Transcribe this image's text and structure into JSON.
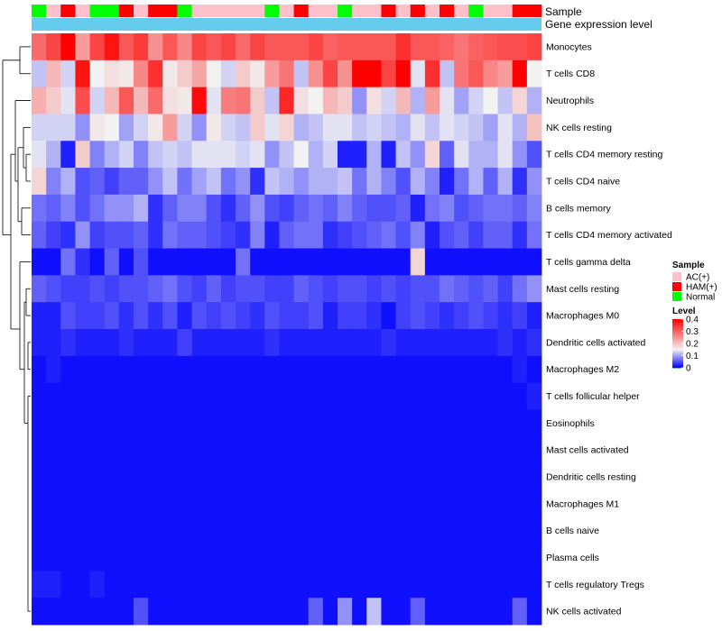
{
  "chart_data": {
    "type": "heatmap",
    "title": "",
    "annotation_labels": {
      "sample": "Sample",
      "expression": "Gene expression level"
    },
    "sample_groups": [
      "N",
      "A",
      "H",
      "A",
      "N",
      "N",
      "H",
      "A",
      "H",
      "H",
      "N",
      "A",
      "A",
      "A",
      "A",
      "A",
      "N",
      "A",
      "H",
      "A",
      "A",
      "N",
      "A",
      "A",
      "H",
      "A",
      "H",
      "A",
      "H",
      "A",
      "N",
      "A",
      "A",
      "H",
      "H"
    ],
    "rows": [
      "Monocytes",
      "T cells CD8",
      "Neutrophils",
      "NK cells resting",
      "T cells CD4 memory resting",
      "T cells CD4 naive",
      "B cells memory",
      "T cells CD4 memory activated",
      "T cells gamma delta",
      "Mast cells resting",
      "Macrophages M0",
      "Dendritic cells activated",
      "Macrophages M2",
      "T cells follicular helper",
      "Eosinophils",
      "Mast cells activated",
      "Dendritic cells resting",
      "Macrophages M1",
      "B cells naive",
      "Plasma cells",
      "T cells regulatory  Tregs",
      "NK cells activated"
    ],
    "values": [
      [
        0.29,
        0.33,
        0.4,
        0.24,
        0.33,
        0.38,
        0.31,
        0.34,
        0.25,
        0.31,
        0.26,
        0.33,
        0.31,
        0.33,
        0.29,
        0.33,
        0.31,
        0.31,
        0.31,
        0.33,
        0.3,
        0.31,
        0.31,
        0.31,
        0.31,
        0.35,
        0.31,
        0.31,
        0.3,
        0.28,
        0.3,
        0.31,
        0.32,
        0.32,
        0.33
      ],
      [
        0.12,
        0.21,
        0.13,
        0.38,
        0.15,
        0.17,
        0.16,
        0.26,
        0.35,
        0.16,
        0.19,
        0.23,
        0.15,
        0.13,
        0.19,
        0.16,
        0.24,
        0.28,
        0.12,
        0.25,
        0.33,
        0.25,
        0.4,
        0.4,
        0.33,
        0.4,
        0.14,
        0.35,
        0.12,
        0.28,
        0.31,
        0.26,
        0.24,
        0.4,
        0.15
      ],
      [
        0.22,
        0.19,
        0.14,
        0.32,
        0.13,
        0.21,
        0.31,
        0.21,
        0.29,
        0.17,
        0.16,
        0.39,
        0.14,
        0.27,
        0.28,
        0.19,
        0.12,
        0.36,
        0.17,
        0.15,
        0.21,
        0.19,
        0.09,
        0.17,
        0.13,
        0.21,
        0.11,
        0.24,
        0.14,
        0.1,
        0.13,
        0.15,
        0.12,
        0.18,
        0.11
      ],
      [
        0.13,
        0.13,
        0.13,
        0.09,
        0.16,
        0.15,
        0.1,
        0.13,
        0.16,
        0.24,
        0.13,
        0.09,
        0.16,
        0.13,
        0.12,
        0.19,
        0.14,
        0.18,
        0.11,
        0.12,
        0.14,
        0.14,
        0.12,
        0.13,
        0.12,
        0.11,
        0.14,
        0.12,
        0.14,
        0.13,
        0.12,
        0.1,
        0.14,
        0.11,
        0.2
      ],
      [
        0.14,
        0.11,
        0.02,
        0.19,
        0.08,
        0.11,
        0.13,
        0.08,
        0.12,
        0.13,
        0.12,
        0.14,
        0.14,
        0.14,
        0.13,
        0.14,
        0.09,
        0.12,
        0.15,
        0.11,
        0.13,
        0.02,
        0.02,
        0.11,
        0.02,
        0.12,
        0.09,
        0.18,
        0.06,
        0.14,
        0.11,
        0.11,
        0.14,
        0.09,
        0.05
      ],
      [
        0.18,
        0.08,
        0.11,
        0.05,
        0.06,
        0.04,
        0.06,
        0.06,
        0.09,
        0.12,
        0.07,
        0.1,
        0.12,
        0.07,
        0.09,
        0.03,
        0.12,
        0.11,
        0.09,
        0.11,
        0.11,
        0.12,
        0.07,
        0.11,
        0.08,
        0.05,
        0.11,
        0.08,
        0.02,
        0.07,
        0.11,
        0.06,
        0.11,
        0.03,
        0.09
      ],
      [
        0.07,
        0.06,
        0.08,
        0.05,
        0.07,
        0.09,
        0.09,
        0.11,
        0.03,
        0.06,
        0.08,
        0.08,
        0.05,
        0.03,
        0.06,
        0.09,
        0.05,
        0.04,
        0.06,
        0.07,
        0.06,
        0.08,
        0.06,
        0.05,
        0.05,
        0.06,
        0.02,
        0.07,
        0.08,
        0.05,
        0.06,
        0.07,
        0.07,
        0.06,
        0.08
      ],
      [
        0.06,
        0.04,
        0.03,
        0.09,
        0.04,
        0.05,
        0.05,
        0.06,
        0.03,
        0.07,
        0.06,
        0.06,
        0.05,
        0.04,
        0.03,
        0.08,
        0.02,
        0.06,
        0.07,
        0.07,
        0.03,
        0.04,
        0.05,
        0.06,
        0.07,
        0.05,
        0.08,
        0.02,
        0.05,
        0.06,
        0.04,
        0.06,
        0.06,
        0.03,
        0.07
      ],
      [
        0.01,
        0.01,
        0.07,
        0.03,
        0.01,
        0.06,
        0.01,
        0.05,
        0.01,
        0.01,
        0.01,
        0.01,
        0.01,
        0.01,
        0.07,
        0.01,
        0.01,
        0.01,
        0.01,
        0.01,
        0.01,
        0.01,
        0.01,
        0.01,
        0.01,
        0.01,
        0.18,
        0.01,
        0.01,
        0.01,
        0.01,
        0.01,
        0.01,
        0.01,
        0.01
      ],
      [
        0.06,
        0.05,
        0.04,
        0.04,
        0.05,
        0.04,
        0.05,
        0.05,
        0.06,
        0.07,
        0.05,
        0.04,
        0.06,
        0.04,
        0.05,
        0.05,
        0.04,
        0.04,
        0.06,
        0.05,
        0.04,
        0.05,
        0.05,
        0.04,
        0.05,
        0.04,
        0.05,
        0.05,
        0.07,
        0.06,
        0.05,
        0.06,
        0.04,
        0.07,
        0.09
      ],
      [
        0.02,
        0.02,
        0.05,
        0.04,
        0.04,
        0.05,
        0.03,
        0.05,
        0.03,
        0.05,
        0.02,
        0.05,
        0.04,
        0.05,
        0.04,
        0.03,
        0.05,
        0.04,
        0.04,
        0.05,
        0.02,
        0.04,
        0.04,
        0.03,
        0.01,
        0.04,
        0.05,
        0.04,
        0.03,
        0.04,
        0.05,
        0.04,
        0.03,
        0.04,
        0.02
      ],
      [
        0.02,
        0.02,
        0.03,
        0.02,
        0.02,
        0.02,
        0.03,
        0.02,
        0.02,
        0.02,
        0.04,
        0.02,
        0.02,
        0.02,
        0.02,
        0.02,
        0.03,
        0.02,
        0.02,
        0.02,
        0.02,
        0.02,
        0.02,
        0.02,
        0.03,
        0.02,
        0.02,
        0.02,
        0.02,
        0.02,
        0.02,
        0.02,
        0.03,
        0.02,
        0.03
      ],
      [
        0.01,
        0.02,
        0.01,
        0.01,
        0.01,
        0.01,
        0.01,
        0.01,
        0.01,
        0.01,
        0.01,
        0.01,
        0.01,
        0.01,
        0.01,
        0.01,
        0.01,
        0.01,
        0.01,
        0.01,
        0.01,
        0.01,
        0.01,
        0.01,
        0.01,
        0.01,
        0.01,
        0.01,
        0.01,
        0.01,
        0.01,
        0.01,
        0.01,
        0.02,
        0.01
      ],
      [
        0.01,
        0.01,
        0.01,
        0.01,
        0.01,
        0.01,
        0.01,
        0.01,
        0.01,
        0.01,
        0.01,
        0.01,
        0.01,
        0.01,
        0.01,
        0.01,
        0.01,
        0.01,
        0.01,
        0.01,
        0.01,
        0.01,
        0.01,
        0.01,
        0.01,
        0.01,
        0.01,
        0.01,
        0.01,
        0.01,
        0.01,
        0.01,
        0.01,
        0.01,
        0.02
      ],
      [
        0.01,
        0.01,
        0.01,
        0.01,
        0.01,
        0.01,
        0.01,
        0.01,
        0.01,
        0.01,
        0.01,
        0.01,
        0.01,
        0.01,
        0.01,
        0.01,
        0.01,
        0.01,
        0.01,
        0.01,
        0.01,
        0.01,
        0.01,
        0.01,
        0.01,
        0.01,
        0.01,
        0.01,
        0.01,
        0.01,
        0.01,
        0.01,
        0.01,
        0.01,
        0.01
      ],
      [
        0.01,
        0.01,
        0.01,
        0.01,
        0.01,
        0.01,
        0.01,
        0.01,
        0.01,
        0.01,
        0.01,
        0.01,
        0.01,
        0.01,
        0.01,
        0.01,
        0.01,
        0.01,
        0.01,
        0.01,
        0.01,
        0.01,
        0.01,
        0.01,
        0.01,
        0.01,
        0.01,
        0.01,
        0.01,
        0.01,
        0.01,
        0.01,
        0.01,
        0.01,
        0.01
      ],
      [
        0.01,
        0.01,
        0.01,
        0.01,
        0.01,
        0.01,
        0.01,
        0.01,
        0.01,
        0.01,
        0.01,
        0.01,
        0.01,
        0.01,
        0.01,
        0.01,
        0.01,
        0.01,
        0.01,
        0.01,
        0.01,
        0.01,
        0.01,
        0.01,
        0.01,
        0.01,
        0.01,
        0.01,
        0.01,
        0.01,
        0.01,
        0.01,
        0.01,
        0.01,
        0.01
      ],
      [
        0.01,
        0.01,
        0.01,
        0.01,
        0.01,
        0.01,
        0.01,
        0.01,
        0.01,
        0.01,
        0.01,
        0.01,
        0.01,
        0.01,
        0.01,
        0.01,
        0.01,
        0.01,
        0.01,
        0.01,
        0.01,
        0.01,
        0.01,
        0.01,
        0.01,
        0.01,
        0.01,
        0.01,
        0.01,
        0.01,
        0.01,
        0.01,
        0.01,
        0.01,
        0.01
      ],
      [
        0.01,
        0.01,
        0.01,
        0.01,
        0.01,
        0.01,
        0.01,
        0.01,
        0.01,
        0.01,
        0.01,
        0.01,
        0.01,
        0.01,
        0.01,
        0.01,
        0.01,
        0.01,
        0.01,
        0.01,
        0.01,
        0.01,
        0.01,
        0.01,
        0.01,
        0.01,
        0.01,
        0.01,
        0.01,
        0.01,
        0.01,
        0.01,
        0.01,
        0.01,
        0.01
      ],
      [
        0.01,
        0.01,
        0.01,
        0.01,
        0.01,
        0.01,
        0.01,
        0.01,
        0.01,
        0.01,
        0.01,
        0.01,
        0.01,
        0.01,
        0.01,
        0.01,
        0.01,
        0.01,
        0.01,
        0.01,
        0.01,
        0.01,
        0.01,
        0.01,
        0.01,
        0.01,
        0.01,
        0.01,
        0.01,
        0.01,
        0.01,
        0.01,
        0.01,
        0.01,
        0.01
      ],
      [
        0.02,
        0.02,
        0.01,
        0.01,
        0.02,
        0.01,
        0.01,
        0.01,
        0.01,
        0.01,
        0.01,
        0.01,
        0.01,
        0.01,
        0.01,
        0.01,
        0.01,
        0.01,
        0.01,
        0.01,
        0.01,
        0.01,
        0.01,
        0.01,
        0.01,
        0.01,
        0.01,
        0.01,
        0.01,
        0.01,
        0.01,
        0.01,
        0.01,
        0.01,
        0.01
      ],
      [
        0.01,
        0.01,
        0.01,
        0.01,
        0.01,
        0.01,
        0.01,
        0.05,
        0.01,
        0.01,
        0.01,
        0.01,
        0.01,
        0.01,
        0.01,
        0.01,
        0.01,
        0.01,
        0.01,
        0.06,
        0.01,
        0.09,
        0.01,
        0.12,
        0.01,
        0.01,
        0.06,
        0.01,
        0.01,
        0.01,
        0.01,
        0.01,
        0.01,
        0.06,
        0.01
      ]
    ],
    "color_scale": {
      "min": 0,
      "max": 0.4,
      "stops": [
        {
          "value": 0,
          "color": "#0000ff"
        },
        {
          "value": 0.15,
          "color": "#f2f2f2"
        },
        {
          "value": 0.4,
          "color": "#ff0000"
        }
      ]
    },
    "legend": {
      "sample_title": "Sample",
      "sample_entries": [
        {
          "key": "A",
          "label": "AC(+)",
          "color": "#ffc0cb"
        },
        {
          "key": "H",
          "label": "HAM(+)",
          "color": "#ff0000"
        },
        {
          "key": "N",
          "label": "Normal",
          "color": "#00ff00"
        }
      ],
      "level_title": "Level",
      "level_ticks": [
        {
          "value": 0.4,
          "label": "0.4"
        },
        {
          "value": 0.3,
          "label": "0.3"
        },
        {
          "value": 0.2,
          "label": "0.2"
        },
        {
          "value": 0.1,
          "label": "0.1"
        },
        {
          "value": 0,
          "label": "0"
        }
      ],
      "placement": "right"
    },
    "expression_bar_color": "#66ccee",
    "dendrogram": "rows, hierarchical clustering (left side)"
  }
}
